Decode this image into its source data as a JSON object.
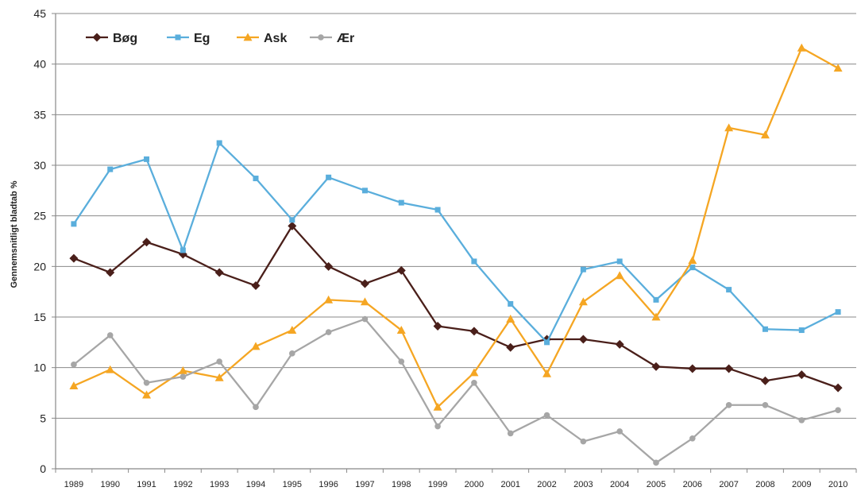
{
  "chart_data": {
    "type": "line",
    "title": "",
    "xlabel": "",
    "ylabel": "Gennemsnitligt bladtab %",
    "ylim": [
      0,
      45
    ],
    "yticks": [
      0,
      5,
      10,
      15,
      20,
      25,
      30,
      35,
      40,
      45
    ],
    "grid": "horizontal",
    "legend_position": "top-left",
    "categories": [
      "1989",
      "1990",
      "1991",
      "1992",
      "1993",
      "1994",
      "1995",
      "1996",
      "1997",
      "1998",
      "1999",
      "2000",
      "2001",
      "2002",
      "2003",
      "2004",
      "2005",
      "2006",
      "2007",
      "2008",
      "2009",
      "2010"
    ],
    "series": [
      {
        "name": "Bøg",
        "color": "#4a1f1a",
        "marker": "diamond",
        "values": [
          20.8,
          19.4,
          22.4,
          21.2,
          19.4,
          18.1,
          24.0,
          20.0,
          18.3,
          19.6,
          14.1,
          13.6,
          12.0,
          12.8,
          12.8,
          12.3,
          10.1,
          9.9,
          9.9,
          8.7,
          9.3,
          8.0
        ]
      },
      {
        "name": "Eg",
        "color": "#5aaedc",
        "marker": "square",
        "values": [
          24.2,
          29.6,
          30.6,
          21.6,
          32.2,
          28.7,
          24.6,
          28.8,
          27.5,
          26.3,
          25.6,
          20.5,
          16.3,
          12.5,
          19.7,
          20.5,
          16.7,
          19.9,
          17.7,
          13.8,
          13.7,
          15.5
        ]
      },
      {
        "name": "Ask",
        "color": "#f5a623",
        "marker": "triangle",
        "values": [
          8.2,
          9.8,
          7.3,
          9.7,
          9.0,
          12.1,
          13.7,
          16.7,
          16.5,
          13.7,
          6.1,
          9.5,
          14.8,
          9.4,
          16.5,
          19.1,
          15.0,
          20.6,
          33.7,
          33.0,
          41.6,
          39.6
        ]
      },
      {
        "name": "Ær",
        "color": "#a6a6a6",
        "marker": "circle",
        "values": [
          10.3,
          13.2,
          8.5,
          9.1,
          10.6,
          6.1,
          11.4,
          13.5,
          14.8,
          10.6,
          4.2,
          8.5,
          3.5,
          5.3,
          2.7,
          3.7,
          0.6,
          3.0,
          6.3,
          6.3,
          4.8,
          5.8
        ]
      }
    ]
  }
}
